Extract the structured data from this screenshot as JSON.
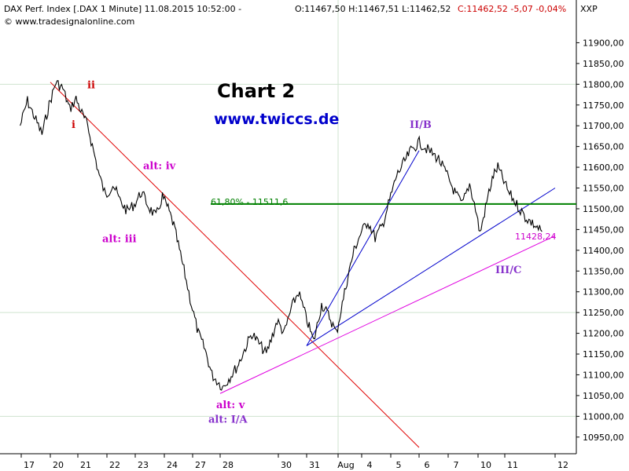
{
  "header": {
    "instrument": "DAX Perf. Index [.DAX  1 Minute] 11.08.2015 10:52:00 -",
    "ohlc": "O:11467,50 H:11467,51 L:11462,52",
    "close": "C:11462,52 -5,07 -0,04%",
    "source": "© www.tradesignalonline.com",
    "axis_code": "XXP"
  },
  "colors": {
    "price": "#000000",
    "fib_line": "#008000",
    "red_line": "#e00000",
    "blue_line": "#0000cc",
    "magenta_line": "#e000e0",
    "label_magenta": "#cc00cc",
    "label_purple": "#8833cc",
    "label_red": "#cc0000"
  },
  "chart_data": {
    "type": "line",
    "title": "Chart 2",
    "subtitle": "www.twiccs.de",
    "ylim": [
      10925,
      11950
    ],
    "y_ticks": [
      "11900,00",
      "11850,00",
      "11800,00",
      "11750,00",
      "11700,00",
      "11650,00",
      "11600,00",
      "11550,00",
      "11500,00",
      "11450,00",
      "11400,00",
      "11350,00",
      "11300,00",
      "11250,00",
      "11200,00",
      "11150,00",
      "11100,00",
      "11050,00",
      "11000,00",
      "10950,00"
    ],
    "x_ticks": [
      "17",
      "20",
      "21",
      "22",
      "23",
      "24",
      "27",
      "28",
      "30",
      "31",
      "Aug",
      "4",
      "5",
      "6",
      "7",
      "10",
      "11",
      "12"
    ],
    "grid": {
      "horizontal": [
        "11800,00",
        "11250,00",
        "11000,00"
      ],
      "vertical": [
        "Aug"
      ]
    },
    "series": [
      {
        "values": [
          [
            "17",
            11700
          ],
          [
            "17",
            11760
          ],
          [
            "17",
            11720
          ],
          [
            "17",
            11680
          ],
          [
            "20",
            11750
          ],
          [
            "20",
            11805
          ],
          [
            "20",
            11790
          ],
          [
            "20",
            11740
          ],
          [
            "21",
            11765
          ],
          [
            "21",
            11730
          ],
          [
            "21",
            11700
          ],
          [
            "21",
            11640
          ],
          [
            "21",
            11580
          ],
          [
            "22",
            11530
          ],
          [
            "22",
            11560
          ],
          [
            "22",
            11520
          ],
          [
            "22",
            11495
          ],
          [
            "23",
            11510
          ],
          [
            "23",
            11540
          ],
          [
            "23",
            11505
          ],
          [
            "23",
            11480
          ],
          [
            "24",
            11530
          ],
          [
            "24",
            11500
          ],
          [
            "24",
            11460
          ],
          [
            "24",
            11400
          ],
          [
            "24",
            11340
          ],
          [
            "27",
            11270
          ],
          [
            "27",
            11200
          ],
          [
            "27",
            11160
          ],
          [
            "27",
            11100
          ],
          [
            "28",
            11070
          ],
          [
            "28",
            11120
          ],
          [
            "28",
            11200
          ],
          [
            "28",
            11150
          ],
          [
            "30",
            11230
          ],
          [
            "30",
            11200
          ],
          [
            "30",
            11260
          ],
          [
            "30",
            11300
          ],
          [
            "31",
            11240
          ],
          [
            "31",
            11180
          ],
          [
            "31",
            11270
          ],
          [
            "31",
            11240
          ],
          [
            "Aug",
            11200
          ],
          [
            "Aug",
            11270
          ],
          [
            "Aug",
            11340
          ],
          [
            "Aug",
            11400
          ],
          [
            "4",
            11440
          ],
          [
            "4",
            11470
          ],
          [
            "4",
            11430
          ],
          [
            "4",
            11460
          ],
          [
            "5",
            11520
          ],
          [
            "5",
            11580
          ],
          [
            "5",
            11610
          ],
          [
            "5",
            11640
          ],
          [
            "6",
            11660
          ],
          [
            "6",
            11640
          ],
          [
            "6",
            11620
          ],
          [
            "7",
            11580
          ],
          [
            "7",
            11540
          ],
          [
            "7",
            11510
          ],
          [
            "7",
            11560
          ],
          [
            "10",
            11500
          ],
          [
            "10",
            11440
          ],
          [
            "10",
            11490
          ],
          [
            "10",
            11540
          ],
          [
            "10",
            11580
          ],
          [
            "10",
            11600
          ],
          [
            "11",
            11540
          ],
          [
            "11",
            11480
          ],
          [
            "11",
            11445
          ]
        ]
      }
    ],
    "fib_level": {
      "label": "61,80% - 11511,6",
      "value": 11511.6
    },
    "value_label": "11428,24",
    "lines": [
      {
        "color": "red",
        "from": [
          "20",
          11805
        ],
        "to": [
          "6",
          10925
        ]
      },
      {
        "color": "blue",
        "from": [
          "31",
          11170
        ],
        "to": [
          "6",
          11640
        ]
      },
      {
        "color": "blue",
        "from": [
          "31",
          11170
        ],
        "to": [
          "12",
          11550
        ]
      },
      {
        "color": "magenta",
        "from": [
          "28",
          11055
        ],
        "to": [
          "12",
          11435
        ]
      }
    ],
    "annotations": [
      {
        "text": "i",
        "color": "red",
        "x": "21",
        "y": 11695
      },
      {
        "text": "ii",
        "color": "red",
        "x": "21",
        "y": 11790
      },
      {
        "text": "alt: iv",
        "color": "magenta",
        "x": "23",
        "y": 11595
      },
      {
        "text": "alt: iii",
        "color": "magenta",
        "x": "22",
        "y": 11420
      },
      {
        "text": "alt: v",
        "color": "magenta",
        "x": "28",
        "y": 11020
      },
      {
        "text": "alt: I/A",
        "color": "purple",
        "x": "28",
        "y": 10985
      },
      {
        "text": "II/B",
        "color": "purple",
        "x": "6",
        "y": 11695
      },
      {
        "text": "III/C",
        "color": "purple",
        "x": "11",
        "y": 11345
      }
    ]
  }
}
